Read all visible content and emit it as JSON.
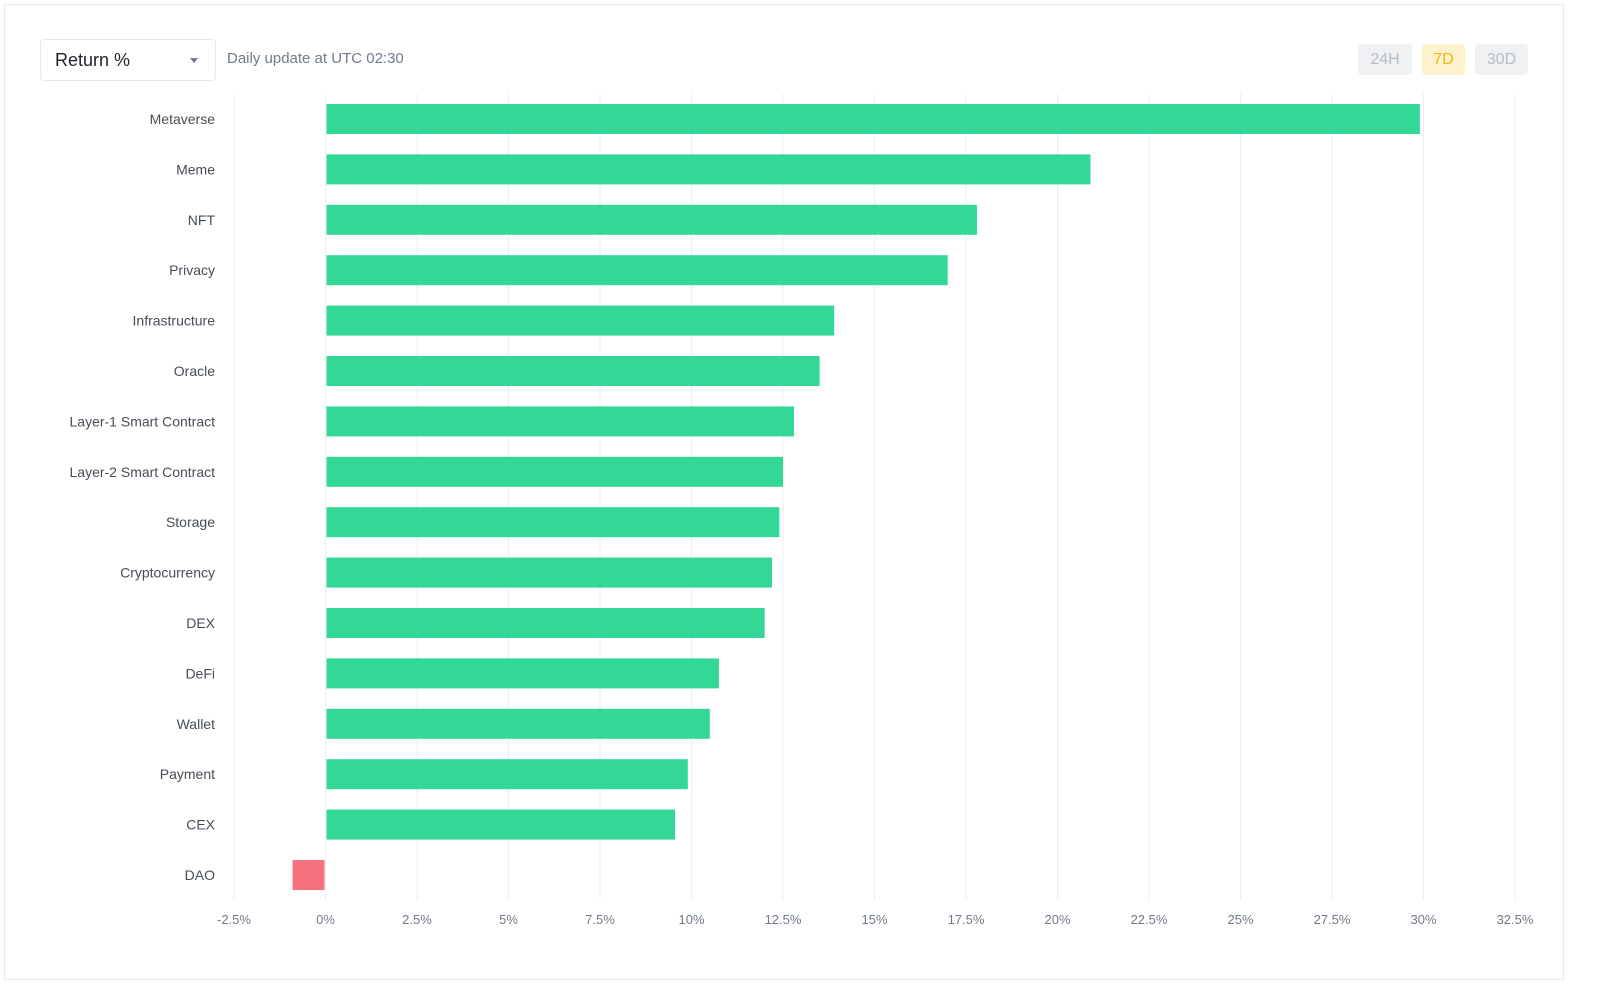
{
  "header": {
    "metric_label": "Return %",
    "update_note": "Daily update at UTC 02:30"
  },
  "period_tabs": [
    {
      "label": "24H",
      "active": false
    },
    {
      "label": "7D",
      "active": true
    },
    {
      "label": "30D",
      "active": false
    }
  ],
  "icons": {
    "dropdown": "chevron-down-icon"
  },
  "colors": {
    "positive": "#34d896",
    "negative": "#f6707e",
    "active_tab_text": "#f0b90b",
    "active_tab_bg": "#fdf2cc"
  },
  "chart_data": {
    "type": "bar",
    "orientation": "horizontal",
    "categories": [
      "Metaverse",
      "Meme",
      "NFT",
      "Privacy",
      "Infrastructure",
      "Oracle",
      "Layer-1 Smart Contract",
      "Layer-2 Smart Contract",
      "Storage",
      "Cryptocurrency",
      "DEX",
      "DeFi",
      "Wallet",
      "Payment",
      "CEX",
      "DAO"
    ],
    "values": [
      29.9,
      20.9,
      17.8,
      17.0,
      13.9,
      13.5,
      12.8,
      12.5,
      12.4,
      12.2,
      12.0,
      10.75,
      10.5,
      9.9,
      9.55,
      -0.9
    ],
    "xlim": [
      -2.5,
      32.5
    ],
    "xticks": [
      "-2.5%",
      "0%",
      "2.5%",
      "5%",
      "7.5%",
      "10%",
      "12.5%",
      "15%",
      "17.5%",
      "20%",
      "22.5%",
      "25%",
      "27.5%",
      "30%",
      "32.5%"
    ],
    "grid": true
  }
}
